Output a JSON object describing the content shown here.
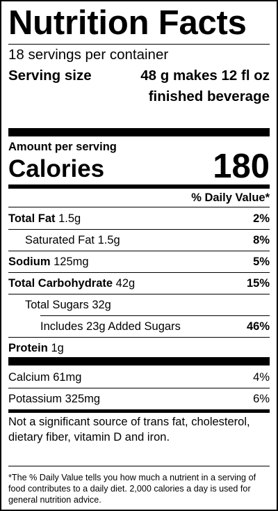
{
  "label": {
    "title": "Nutrition Facts",
    "servings_per_container": "18 servings per container",
    "serving_size_label": "Serving size",
    "serving_size_value": "48 g makes 12 fl oz finished beverage",
    "amount_per_serving": "Amount per serving",
    "calories_label": "Calories",
    "calories_value": "180",
    "daily_value_header": "% Daily Value*",
    "nutrients": [
      {
        "name": "Total Fat",
        "amount": "1.5g",
        "dv": "2%"
      },
      {
        "name": "Saturated Fat",
        "amount": "1.5g",
        "dv": "8%"
      },
      {
        "name": "Sodium",
        "amount": "125mg",
        "dv": "5%"
      },
      {
        "name": "Total Carbohydrate",
        "amount": "42g",
        "dv": "15%"
      },
      {
        "name": "Total Sugars",
        "amount": "32g",
        "dv": ""
      },
      {
        "name": "Includes 23g Added Sugars",
        "amount": "",
        "dv": "46%"
      },
      {
        "name": "Protein",
        "amount": "1g",
        "dv": ""
      }
    ],
    "vitamins": [
      {
        "name": "Calcium",
        "amount": "61mg",
        "dv": "4%"
      },
      {
        "name": "Potassium",
        "amount": "325mg",
        "dv": "6%"
      }
    ],
    "not_significant_note": "Not a significant source of trans fat, cholesterol, dietary fiber, vitamin D and iron.",
    "footnote": "*The % Daily Value tells you how much a nutrient in a serving of food contributes to a daily diet. 2,000 calories a day is used for general nutrition advice."
  }
}
